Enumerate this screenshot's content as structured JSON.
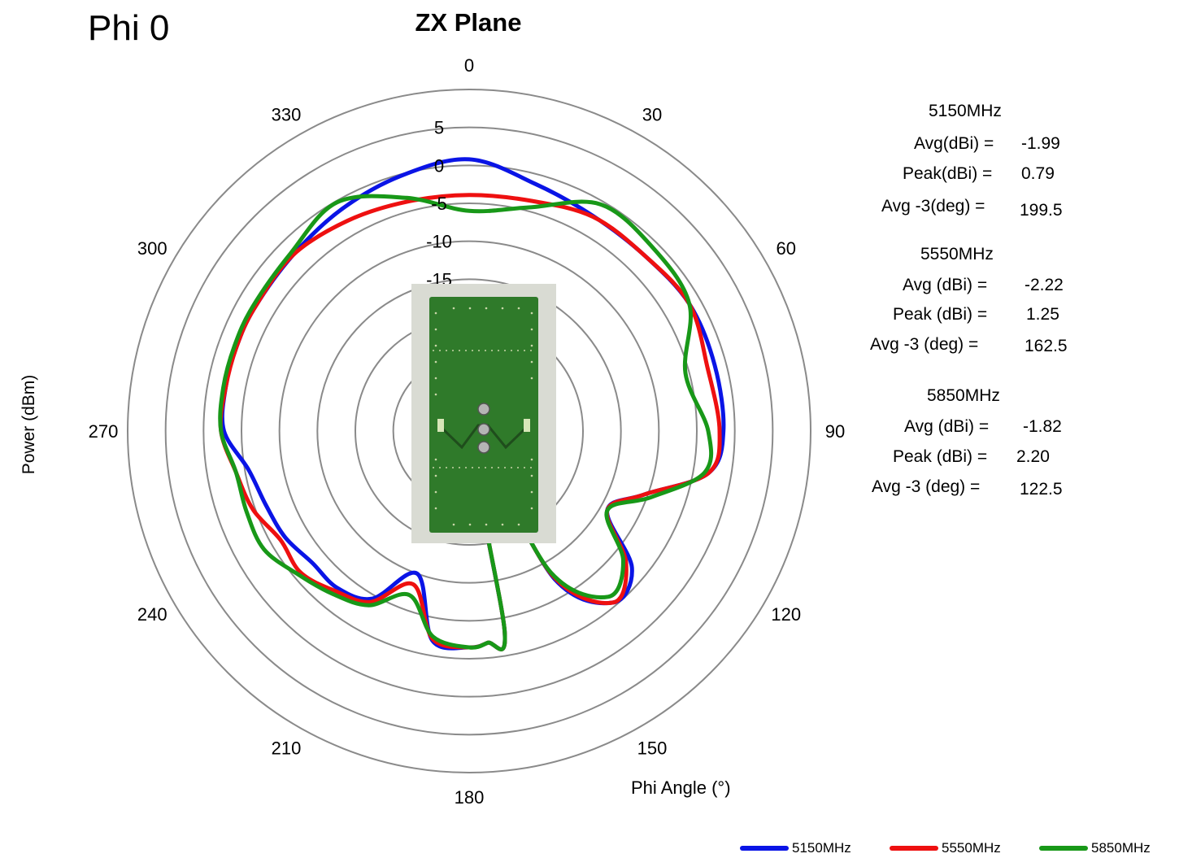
{
  "page_label": "Phi 0",
  "chart_data": {
    "type": "polar-line",
    "title": "ZX Plane",
    "xlabel": "Phi Angle (°)",
    "ylabel": "Power (dBm)",
    "angle_ticks": [
      "0",
      "30",
      "60",
      "90",
      "120",
      "150",
      "180",
      "210",
      "240",
      "270",
      "300",
      "330"
    ],
    "radial_ticks": [
      "5",
      "0",
      "-5",
      "-10",
      "-15"
    ],
    "radial_range": [
      -35,
      10
    ],
    "grid": true,
    "legend_position": "bottom-right",
    "angles": [
      0,
      15,
      30,
      45,
      60,
      75,
      90,
      100,
      110,
      120,
      130,
      140,
      150,
      160,
      170,
      175,
      180,
      190,
      200,
      210,
      220,
      230,
      240,
      250,
      260,
      270,
      280,
      290,
      300,
      315,
      330,
      345
    ],
    "series": [
      {
        "name": "5150MHz",
        "color": "#0a14e6",
        "values": [
          0.8,
          -1.3,
          -2.3,
          -2.3,
          -1.5,
          -1.5,
          -1.5,
          -3.0,
          -10.5,
          -14.0,
          -7.0,
          -5.5,
          -12.5,
          -32.0,
          -8.0,
          -7.0,
          -6.5,
          -7.0,
          -15.0,
          -9.5,
          -8.0,
          -8.0,
          -7.0,
          -6.5,
          -5.5,
          -2.7,
          -2.4,
          -2.4,
          -2.4,
          -2.2,
          -1.3,
          -0.2
        ]
      },
      {
        "name": "5550MHz",
        "color": "#ee1010",
        "values": [
          -3.9,
          -3.6,
          -2.4,
          -2.3,
          -1.5,
          -2.5,
          -2.0,
          -3.0,
          -10.5,
          -14.0,
          -8.0,
          -5.5,
          -13.0,
          -32.0,
          -8.0,
          -7.0,
          -6.5,
          -7.2,
          -13.5,
          -9.0,
          -7.5,
          -6.0,
          -6.3,
          -4.7,
          -3.8,
          -2.3,
          -2.4,
          -2.4,
          -2.4,
          -2.2,
          -3.0,
          -3.7
        ]
      },
      {
        "name": "5850MHz",
        "color": "#189818",
        "values": [
          -6.0,
          -4.5,
          -0.5,
          -0.8,
          -1.5,
          -5.5,
          -3.5,
          -3.5,
          -9.5,
          -14.0,
          -8.5,
          -6.5,
          -13.5,
          -32.0,
          -8.0,
          -7.0,
          -6.5,
          -7.5,
          -12.0,
          -8.5,
          -7.0,
          -5.6,
          -3.8,
          -3.8,
          -3.8,
          -2.3,
          -2.1,
          -2.1,
          -2.1,
          -1.8,
          -0.2,
          -3.2
        ]
      }
    ]
  },
  "stats": [
    {
      "freq": "5150MHz",
      "rows": [
        {
          "label": "Avg(dBi) =",
          "value": "-1.99"
        },
        {
          "label": "Peak(dBi) =",
          "value": "0.79"
        },
        {
          "label": "Avg -3(deg) =",
          "value": "199.5"
        }
      ]
    },
    {
      "freq": "5550MHz",
      "rows": [
        {
          "label": "Avg (dBi) =",
          "value": "-2.22"
        },
        {
          "label": "Peak (dBi) =",
          "value": "1.25"
        },
        {
          "label": "Avg -3 (deg) =",
          "value": "162.5"
        }
      ]
    },
    {
      "freq": "5850MHz",
      "rows": [
        {
          "label": "Avg (dBi) =",
          "value": "-1.82"
        },
        {
          "label": "Peak (dBi) =",
          "value": "2.20"
        },
        {
          "label": "Avg -3 (deg) =",
          "value": "122.5"
        }
      ]
    }
  ]
}
